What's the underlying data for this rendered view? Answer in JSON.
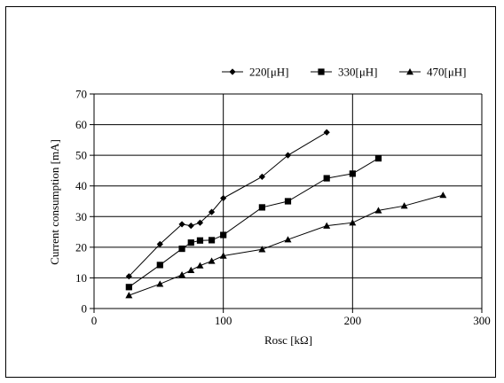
{
  "chart_data": {
    "type": "line",
    "xlabel": "Rosc [kΩ]",
    "ylabel": "Current consumption [mA]",
    "xlim": [
      0,
      300
    ],
    "ylim": [
      0,
      70
    ],
    "x_ticks": [
      "0",
      "100",
      "200",
      "300"
    ],
    "y_ticks": [
      "0",
      "10",
      "20",
      "30",
      "40",
      "50",
      "60",
      "70"
    ],
    "x_tick_values": [
      0,
      100,
      200,
      300
    ],
    "y_tick_values": [
      0,
      10,
      20,
      30,
      40,
      50,
      60,
      70
    ],
    "grid": "both major",
    "legend_position": "top-right",
    "series": [
      {
        "name": "220[μH]",
        "marker": "diamond",
        "points": [
          [
            27,
            10.5
          ],
          [
            51,
            21
          ],
          [
            68,
            27.5
          ],
          [
            75,
            27
          ],
          [
            82,
            28
          ],
          [
            91,
            31.5
          ],
          [
            100,
            36
          ],
          [
            130,
            43
          ],
          [
            150,
            50
          ],
          [
            180,
            57.5
          ]
        ]
      },
      {
        "name": "330[μH]",
        "marker": "square",
        "points": [
          [
            27,
            7
          ],
          [
            51,
            14.2
          ],
          [
            68,
            19.5
          ],
          [
            75,
            21.5
          ],
          [
            82,
            22.2
          ],
          [
            91,
            22.3
          ],
          [
            100,
            24
          ],
          [
            130,
            33
          ],
          [
            150,
            35
          ],
          [
            180,
            42.5
          ],
          [
            200,
            44
          ],
          [
            220,
            49
          ]
        ]
      },
      {
        "name": "470[μH]",
        "marker": "triangle",
        "points": [
          [
            27,
            4.3
          ],
          [
            51,
            8
          ],
          [
            68,
            11
          ],
          [
            75,
            12.5
          ],
          [
            82,
            14
          ],
          [
            91,
            15.5
          ],
          [
            100,
            17.2
          ],
          [
            130,
            19.3
          ],
          [
            150,
            22.5
          ],
          [
            180,
            27
          ],
          [
            200,
            28
          ],
          [
            220,
            32
          ],
          [
            240,
            33.5
          ],
          [
            270,
            37
          ]
        ]
      }
    ]
  }
}
